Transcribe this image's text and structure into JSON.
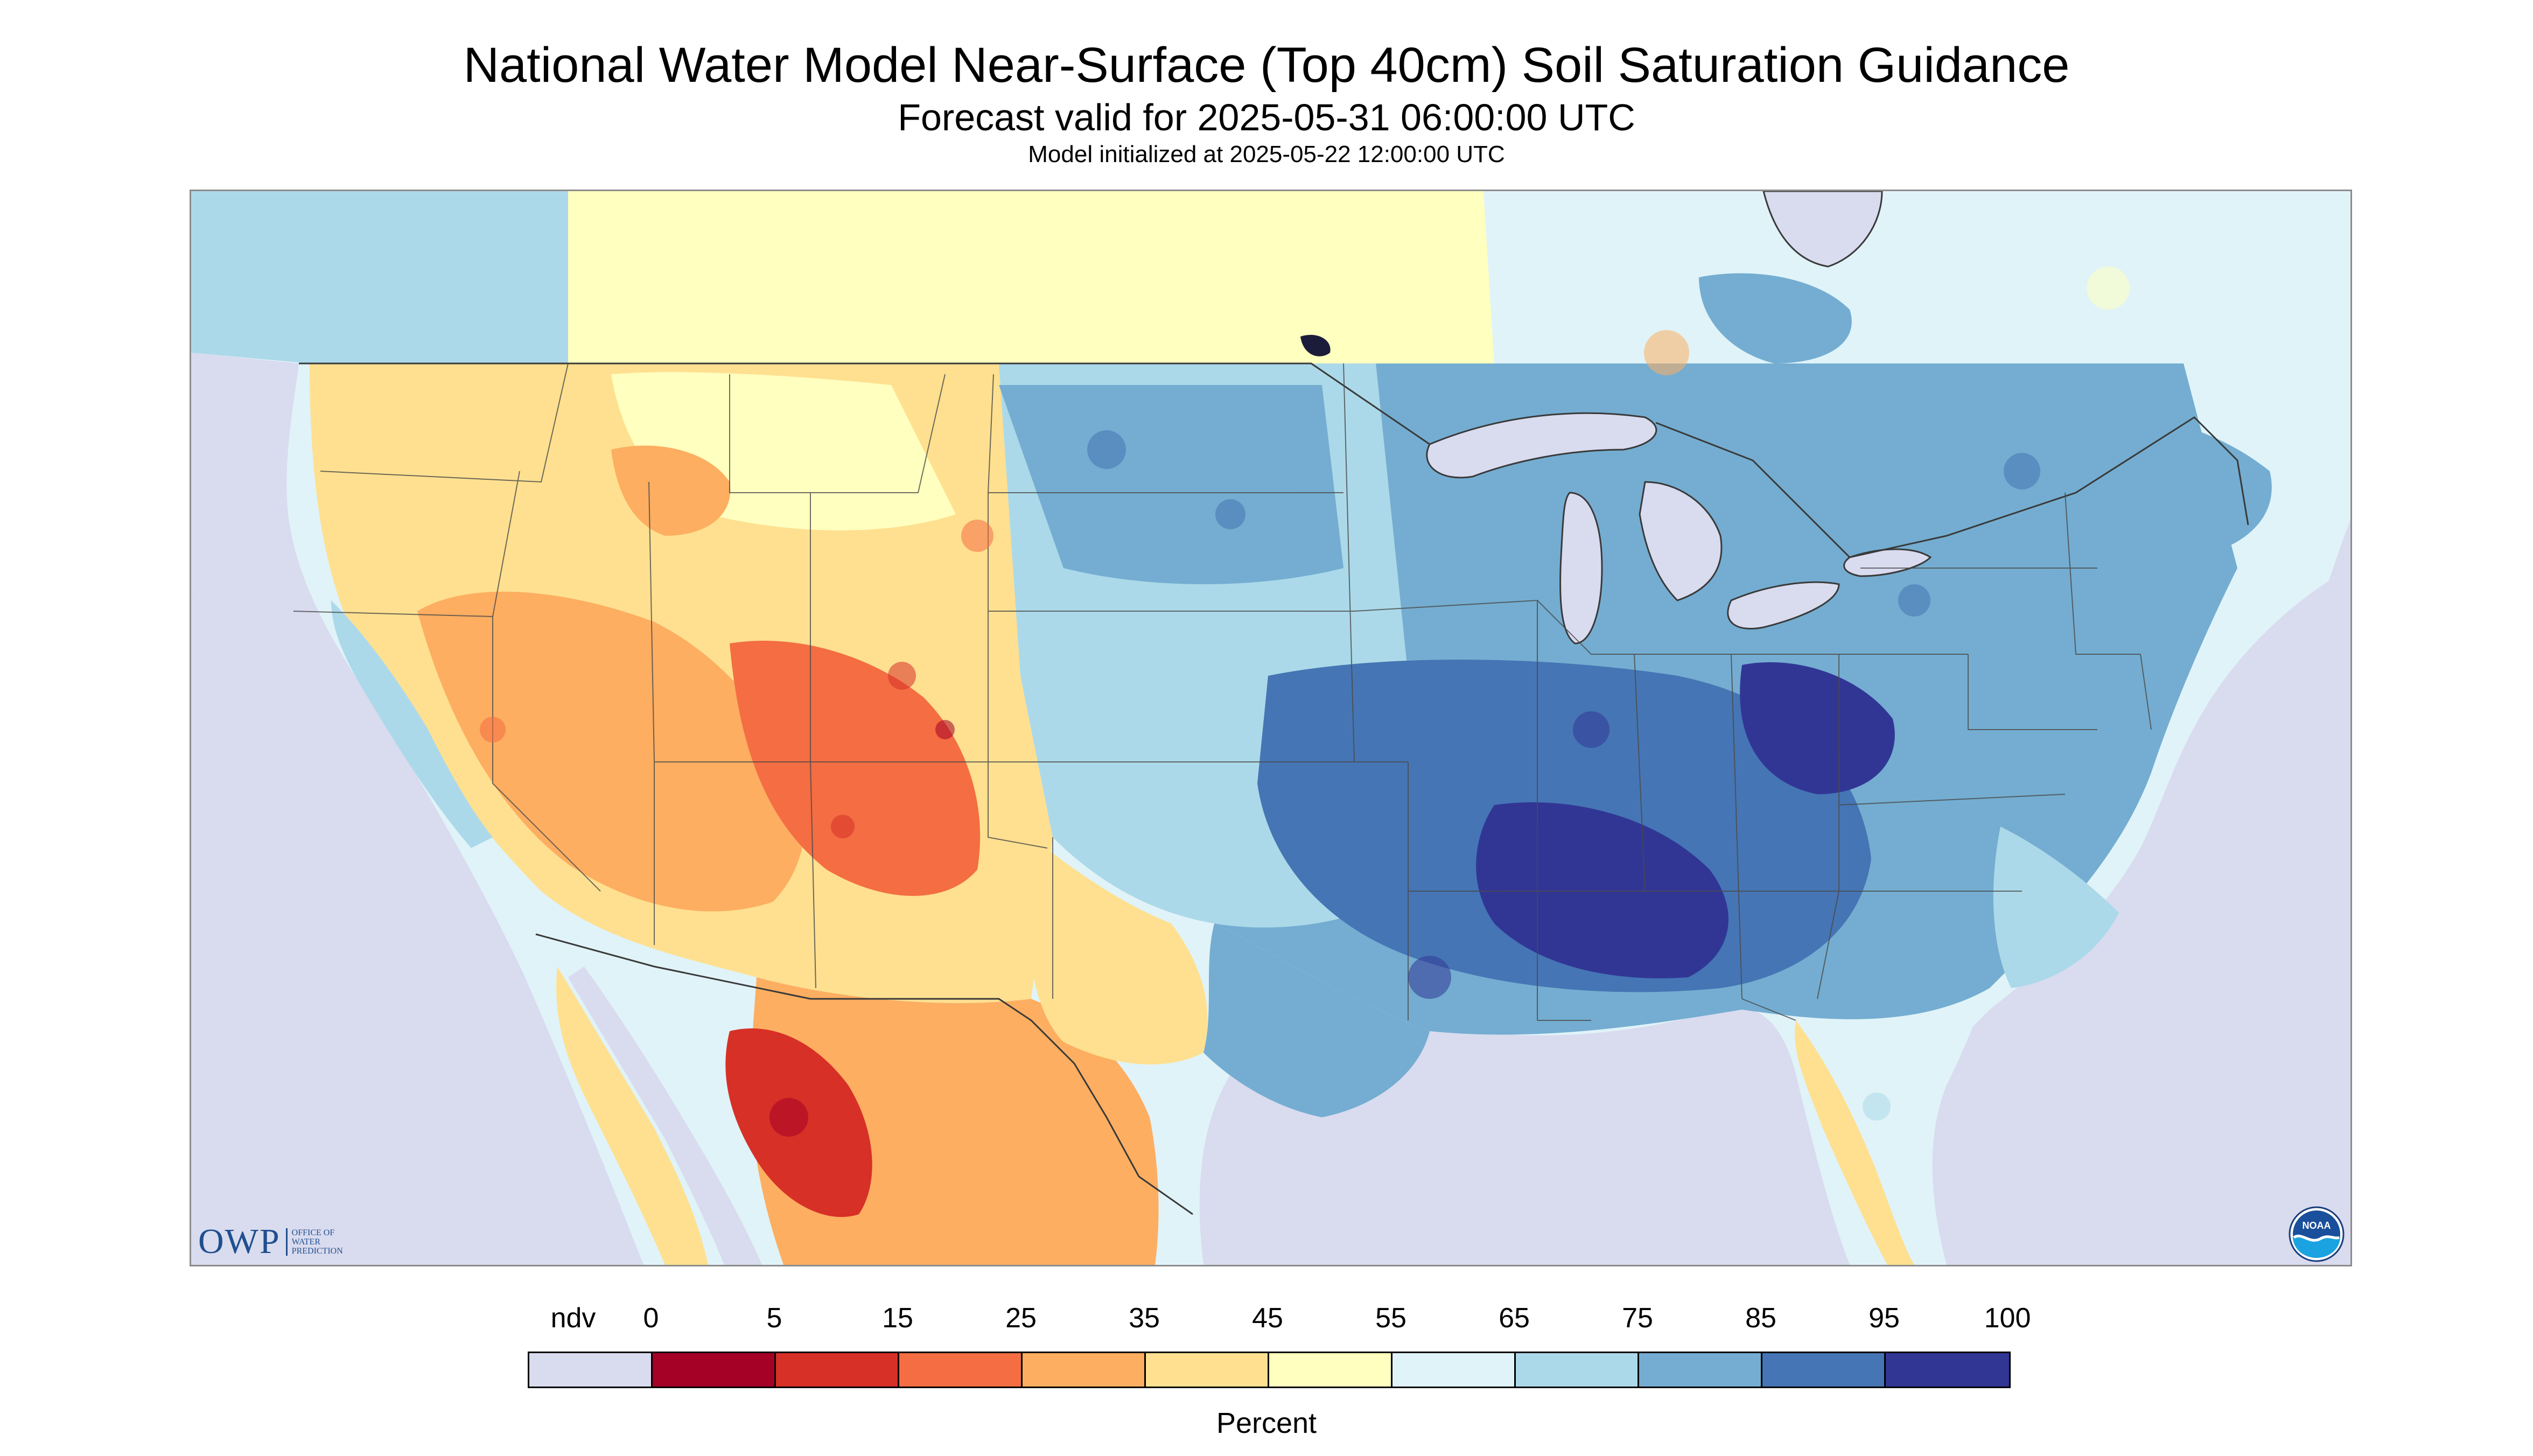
{
  "title": "National Water Model Near-Surface (Top 40cm) Soil Saturation Guidance",
  "subtitle": "Forecast valid for 2025-05-31 06:00:00 UTC",
  "init_line": "Model initialized at 2025-05-22 12:00:00 UTC",
  "logos": {
    "owp_text": "OWP",
    "owp_subtext": [
      "OFFICE OF",
      "WATER",
      "PREDICTION"
    ],
    "noaa_text": "NOAA"
  },
  "legend": {
    "labels": [
      "ndv",
      "0",
      "5",
      "15",
      "25",
      "35",
      "45",
      "55",
      "65",
      "75",
      "85",
      "95",
      "100"
    ],
    "colors": [
      "#d9dbef",
      "#a50026",
      "#d73027",
      "#f46d43",
      "#fdae61",
      "#fee090",
      "#ffffbf",
      "#e0f3f8",
      "#abd9e9",
      "#74add1",
      "#4575b4",
      "#313695"
    ],
    "units": "Percent"
  },
  "map_colors": {
    "no_data": "#d9dbef",
    "land_base": "#e0f3f8",
    "boundaries": "#3a3a3a"
  }
}
